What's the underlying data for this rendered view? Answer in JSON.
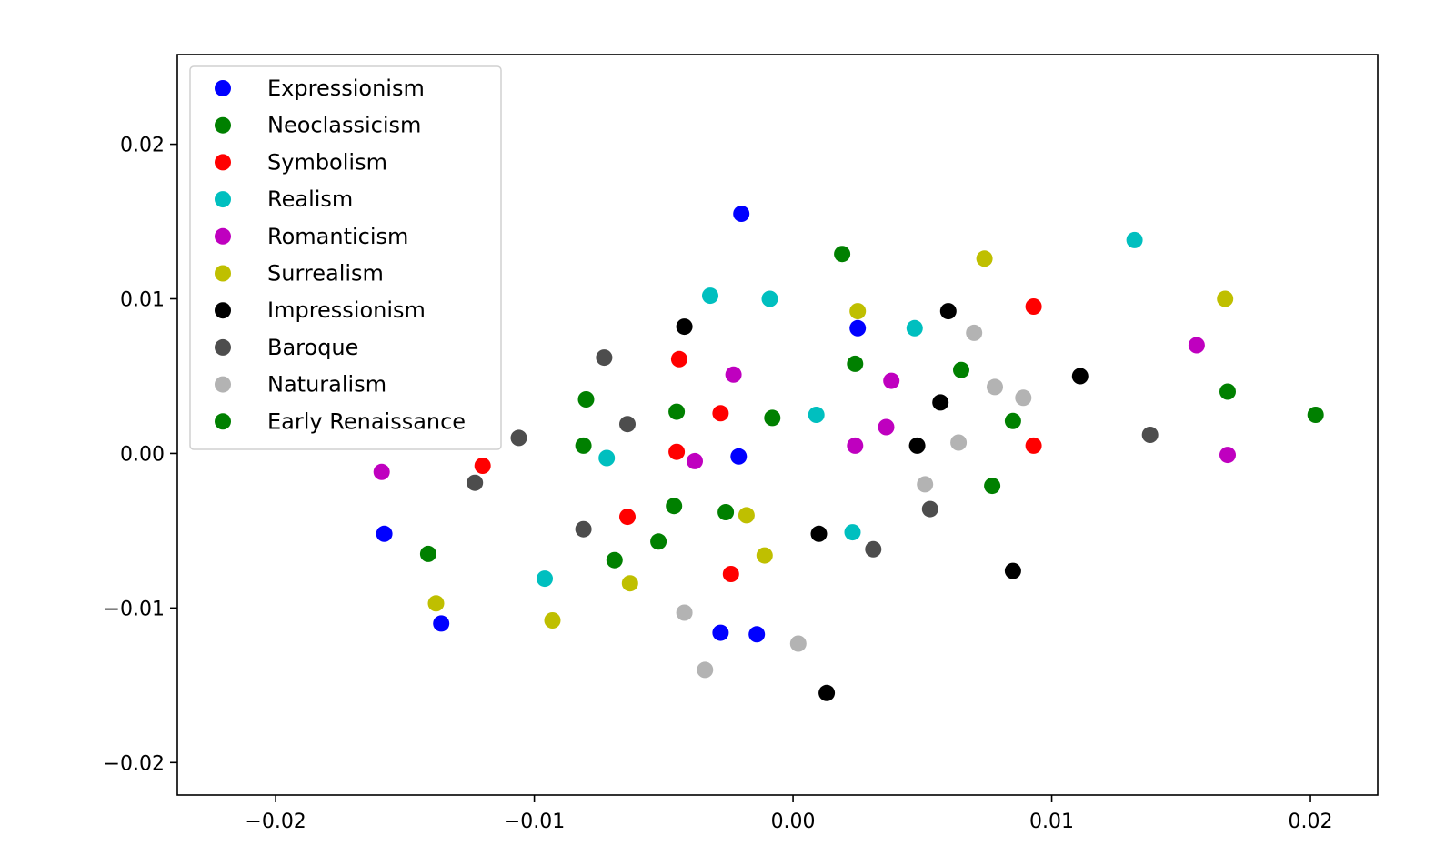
{
  "chart_data": {
    "type": "scatter",
    "title": "",
    "xlabel": "",
    "ylabel": "",
    "xlim": [
      -0.0238,
      0.0226
    ],
    "ylim": [
      -0.0221,
      0.0258
    ],
    "xticks": [
      -0.02,
      -0.01,
      0.0,
      0.01,
      0.02
    ],
    "xtick_labels": [
      "−0.02",
      "−0.01",
      "0.00",
      "0.01",
      "0.02"
    ],
    "yticks": [
      -0.02,
      -0.01,
      0.0,
      0.01,
      0.02
    ],
    "ytick_labels": [
      "−0.02",
      "−0.01",
      "0.00",
      "0.01",
      "0.02"
    ],
    "grid": false,
    "legend_position": "top-left",
    "series": [
      {
        "name": "Expressionism",
        "color": "#0000ff",
        "points": [
          [
            -0.0158,
            -0.0052
          ],
          [
            -0.0136,
            -0.011
          ],
          [
            -0.002,
            0.0155
          ],
          [
            0.0025,
            0.0081
          ],
          [
            -0.0021,
            -0.0002
          ],
          [
            -0.0028,
            -0.0116
          ],
          [
            -0.0014,
            -0.0117
          ]
        ]
      },
      {
        "name": "Neoclassicism",
        "color": "#008000",
        "points": [
          [
            -0.008,
            0.0035
          ],
          [
            -0.0081,
            0.0005
          ],
          [
            -0.0045,
            0.0027
          ],
          [
            -0.0046,
            -0.0034
          ],
          [
            -0.0026,
            -0.0038
          ],
          [
            -0.0052,
            -0.0057
          ],
          [
            -0.0069,
            -0.0069
          ],
          [
            -0.0141,
            -0.0065
          ],
          [
            -0.0008,
            0.0023
          ],
          [
            0.0019,
            0.0129
          ],
          [
            0.0024,
            0.0058
          ]
        ]
      },
      {
        "name": "Symbolism",
        "color": "#ff0000",
        "points": [
          [
            -0.012,
            -0.0008
          ],
          [
            -0.0064,
            -0.0041
          ],
          [
            -0.0044,
            0.0061
          ],
          [
            -0.0045,
            0.0001
          ],
          [
            -0.0028,
            0.0026
          ],
          [
            -0.0024,
            -0.0078
          ],
          [
            0.0093,
            0.0095
          ],
          [
            0.0093,
            0.0005
          ]
        ]
      },
      {
        "name": "Realism",
        "color": "#00bfbf",
        "points": [
          [
            -0.0096,
            -0.0081
          ],
          [
            -0.0072,
            -0.0003
          ],
          [
            -0.0032,
            0.0102
          ],
          [
            -0.0009,
            0.01
          ],
          [
            0.0009,
            0.0025
          ],
          [
            0.0023,
            -0.0051
          ],
          [
            0.0047,
            0.0081
          ],
          [
            0.0132,
            0.0138
          ]
        ]
      },
      {
        "name": "Romanticism",
        "color": "#bf00bf",
        "points": [
          [
            -0.0159,
            -0.0012
          ],
          [
            -0.0038,
            -0.0005
          ],
          [
            -0.0023,
            0.0051
          ],
          [
            0.0024,
            0.0005
          ],
          [
            0.0036,
            0.0017
          ],
          [
            0.0038,
            0.0047
          ],
          [
            0.0156,
            0.007
          ],
          [
            0.0168,
            -0.0001
          ]
        ]
      },
      {
        "name": "Surrealism",
        "color": "#bfbf00",
        "points": [
          [
            -0.0138,
            -0.0097
          ],
          [
            -0.0093,
            -0.0108
          ],
          [
            -0.0063,
            -0.0084
          ],
          [
            -0.0018,
            -0.004
          ],
          [
            -0.0011,
            -0.0066
          ],
          [
            0.0025,
            0.0092
          ],
          [
            0.0074,
            0.0126
          ],
          [
            0.0167,
            0.01
          ]
        ]
      },
      {
        "name": "Impressionism",
        "color": "#000000",
        "points": [
          [
            -0.0042,
            0.0082
          ],
          [
            0.001,
            -0.0052
          ],
          [
            0.0013,
            -0.0155
          ],
          [
            0.0048,
            0.0005
          ],
          [
            0.0057,
            0.0033
          ],
          [
            0.006,
            0.0092
          ],
          [
            0.0085,
            -0.0076
          ],
          [
            0.0111,
            0.005
          ]
        ]
      },
      {
        "name": "Baroque",
        "color": "#4d4d4d",
        "points": [
          [
            -0.0123,
            -0.0019
          ],
          [
            -0.0106,
            0.001
          ],
          [
            -0.0081,
            -0.0049
          ],
          [
            -0.0073,
            0.0062
          ],
          [
            -0.0064,
            0.0019
          ],
          [
            0.0031,
            -0.0062
          ],
          [
            0.0053,
            -0.0036
          ],
          [
            0.0138,
            0.0012
          ]
        ]
      },
      {
        "name": "Naturalism",
        "color": "#b3b3b3",
        "points": [
          [
            -0.0042,
            -0.0103
          ],
          [
            -0.0034,
            -0.014
          ],
          [
            0.0002,
            -0.0123
          ],
          [
            0.0051,
            -0.002
          ],
          [
            0.0064,
            0.0007
          ],
          [
            0.007,
            0.0078
          ],
          [
            0.0078,
            0.0043
          ],
          [
            0.0089,
            0.0036
          ]
        ]
      },
      {
        "name": "Early Renaissance",
        "color": "#008000",
        "points": [
          [
            0.0065,
            0.0054
          ],
          [
            0.0077,
            -0.0021
          ],
          [
            0.0085,
            0.0021
          ],
          [
            0.0168,
            0.004
          ],
          [
            0.0202,
            0.0025
          ]
        ]
      }
    ]
  }
}
